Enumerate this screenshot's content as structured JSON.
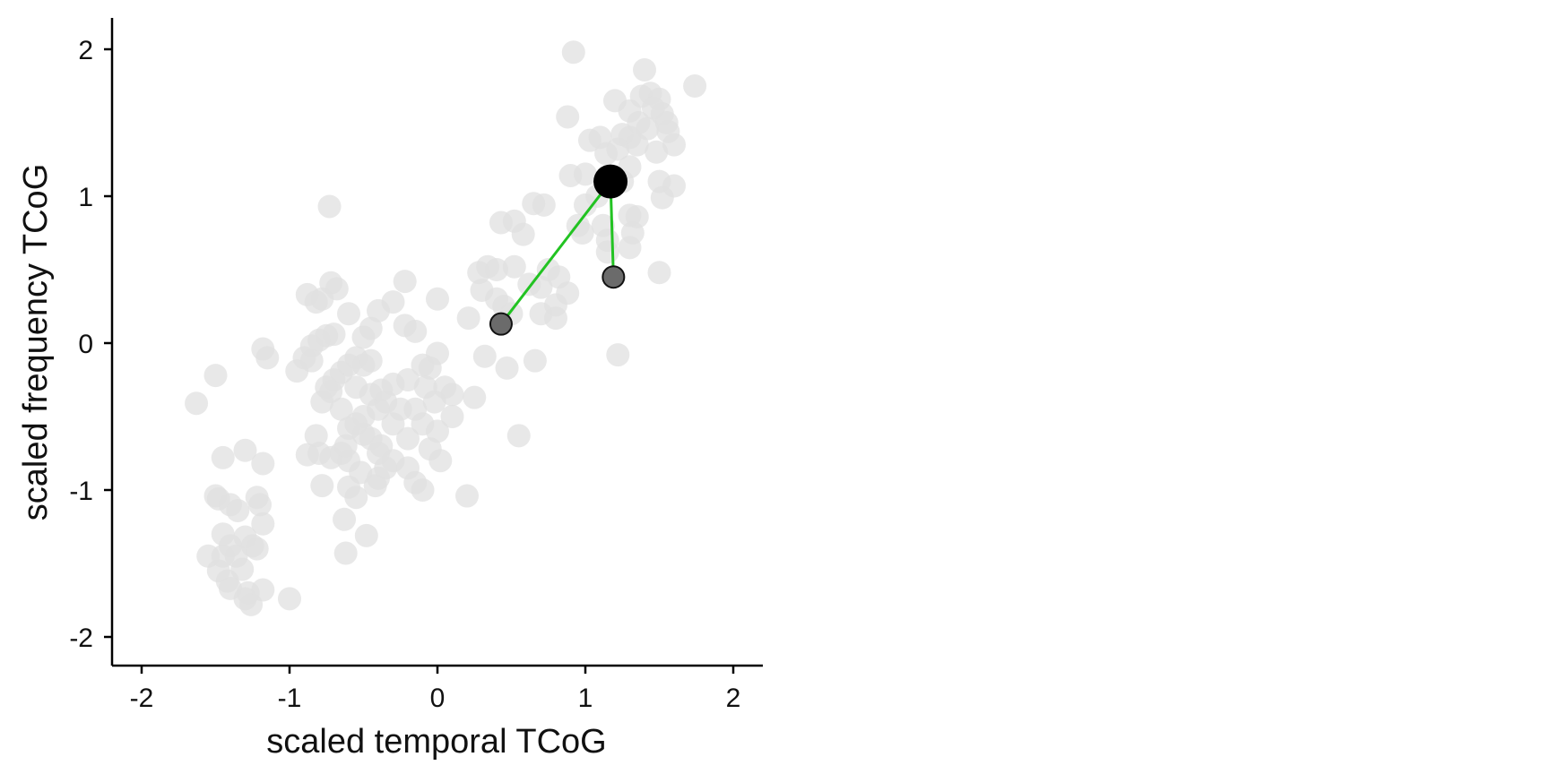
{
  "chart_data": {
    "type": "scatter",
    "title": "",
    "xlabel": "scaled temporal TCoG",
    "ylabel": "scaled frequency TCoG",
    "xlim": [
      -2.2,
      2.2
    ],
    "ylim": [
      -2.2,
      2.2
    ],
    "xticks": [
      -2,
      -1,
      0,
      1,
      2
    ],
    "yticks": [
      -2,
      -1,
      0,
      1,
      2
    ],
    "xtick_labels": [
      "-2",
      "-1",
      "0",
      "1",
      "2"
    ],
    "ytick_labels": [
      "-2",
      "-1",
      "0",
      "1",
      "2"
    ],
    "grid": false,
    "legend": "none",
    "colors": {
      "background_points": "#e0e0e0",
      "focus_point": "#000000",
      "neighbor_points": "#6b6b6b",
      "link_lines": "#22c322",
      "axis": "#000000"
    },
    "background_points": [
      [
        0.92,
        1.98
      ],
      [
        1.4,
        1.86
      ],
      [
        1.74,
        1.75
      ],
      [
        1.38,
        1.68
      ],
      [
        1.44,
        1.7
      ],
      [
        1.5,
        1.66
      ],
      [
        1.2,
        1.65
      ],
      [
        1.3,
        1.58
      ],
      [
        1.46,
        1.6
      ],
      [
        1.52,
        1.56
      ],
      [
        1.55,
        1.5
      ],
      [
        0.88,
        1.54
      ],
      [
        1.36,
        1.5
      ],
      [
        1.42,
        1.46
      ],
      [
        1.56,
        1.44
      ],
      [
        1.25,
        1.42
      ],
      [
        1.1,
        1.4
      ],
      [
        1.03,
        1.38
      ],
      [
        1.3,
        1.4
      ],
      [
        1.6,
        1.35
      ],
      [
        1.35,
        1.35
      ],
      [
        1.22,
        1.32
      ],
      [
        1.48,
        1.3
      ],
      [
        1.14,
        1.29
      ],
      [
        0.9,
        1.14
      ],
      [
        1.3,
        1.2
      ],
      [
        1.0,
        1.15
      ],
      [
        1.25,
        1.1
      ],
      [
        1.5,
        1.1
      ],
      [
        1.6,
        1.07
      ],
      [
        1.08,
        1.0
      ],
      [
        1.52,
        0.99
      ],
      [
        1.0,
        0.94
      ],
      [
        1.3,
        0.87
      ],
      [
        1.35,
        0.86
      ],
      [
        0.95,
        0.8
      ],
      [
        1.12,
        0.8
      ],
      [
        1.32,
        0.75
      ],
      [
        0.98,
        0.75
      ],
      [
        1.15,
        0.7
      ],
      [
        1.3,
        0.65
      ],
      [
        1.15,
        0.62
      ],
      [
        1.5,
        0.48
      ],
      [
        0.72,
        0.94
      ],
      [
        0.65,
        0.95
      ],
      [
        0.52,
        0.83
      ],
      [
        0.43,
        0.82
      ],
      [
        0.58,
        0.74
      ],
      [
        0.34,
        0.52
      ],
      [
        0.52,
        0.52
      ],
      [
        0.28,
        0.48
      ],
      [
        0.4,
        0.5
      ],
      [
        0.75,
        0.5
      ],
      [
        0.82,
        0.45
      ],
      [
        0.7,
        0.38
      ],
      [
        0.88,
        0.34
      ],
      [
        0.62,
        0.4
      ],
      [
        0.3,
        0.36
      ],
      [
        0.4,
        0.3
      ],
      [
        0.8,
        0.26
      ],
      [
        0.45,
        0.25
      ],
      [
        0.7,
        0.2
      ],
      [
        0.8,
        0.17
      ],
      [
        0.5,
        0.2
      ],
      [
        0.21,
        0.17
      ],
      [
        0.32,
        -0.09
      ],
      [
        0.47,
        -0.17
      ],
      [
        0.66,
        -0.12
      ],
      [
        1.22,
        -0.08
      ],
      [
        0.55,
        -0.63
      ],
      [
        0.25,
        -0.37
      ],
      [
        0.2,
        -1.04
      ],
      [
        0.05,
        -0.3
      ],
      [
        0.1,
        -0.35
      ],
      [
        -0.02,
        -0.4
      ],
      [
        0.1,
        -0.5
      ],
      [
        0.0,
        -0.6
      ],
      [
        -0.05,
        -0.72
      ],
      [
        0.02,
        -0.8
      ],
      [
        -0.1,
        -0.55
      ],
      [
        -0.15,
        -0.45
      ],
      [
        -0.2,
        -0.65
      ],
      [
        -0.15,
        -0.95
      ],
      [
        -0.1,
        -1.0
      ],
      [
        0.0,
        0.3
      ],
      [
        -0.15,
        0.08
      ],
      [
        -0.22,
        0.12
      ],
      [
        -0.22,
        0.42
      ],
      [
        -0.3,
        0.28
      ],
      [
        -0.4,
        0.22
      ],
      [
        -0.45,
        0.1
      ],
      [
        -0.5,
        0.04
      ],
      [
        -0.6,
        0.2
      ],
      [
        -0.68,
        0.37
      ],
      [
        -0.72,
        0.41
      ],
      [
        -0.78,
        0.3
      ],
      [
        -0.88,
        0.33
      ],
      [
        -0.75,
        0.05
      ],
      [
        -0.8,
        0.02
      ],
      [
        -0.85,
        -0.02
      ],
      [
        -0.9,
        -0.1
      ],
      [
        -0.95,
        -0.19
      ],
      [
        -1.18,
        -0.04
      ],
      [
        -1.15,
        -0.1
      ],
      [
        -0.55,
        -0.1
      ],
      [
        -0.5,
        -0.15
      ],
      [
        -0.45,
        -0.12
      ],
      [
        -0.6,
        -0.15
      ],
      [
        -0.65,
        -0.2
      ],
      [
        -0.7,
        -0.25
      ],
      [
        -0.75,
        -0.3
      ],
      [
        -0.78,
        -0.4
      ],
      [
        -0.72,
        -0.33
      ],
      [
        -0.65,
        -0.45
      ],
      [
        -0.55,
        -0.3
      ],
      [
        -0.45,
        -0.35
      ],
      [
        -0.4,
        -0.45
      ],
      [
        -0.35,
        -0.4
      ],
      [
        -0.3,
        -0.55
      ],
      [
        -0.25,
        -0.45
      ],
      [
        -0.2,
        -0.25
      ],
      [
        -0.3,
        -0.28
      ],
      [
        -0.38,
        -0.32
      ],
      [
        -0.5,
        -0.5
      ],
      [
        -0.55,
        -0.55
      ],
      [
        -0.6,
        -0.58
      ],
      [
        -0.5,
        -0.62
      ],
      [
        -0.45,
        -0.65
      ],
      [
        -0.38,
        -0.7
      ],
      [
        -0.4,
        -0.75
      ],
      [
        -0.3,
        -0.8
      ],
      [
        -0.35,
        -0.85
      ],
      [
        -0.2,
        -0.85
      ],
      [
        -0.4,
        -0.92
      ],
      [
        -0.42,
        -0.97
      ],
      [
        -0.52,
        -0.88
      ],
      [
        -0.6,
        -0.8
      ],
      [
        -0.65,
        -0.75
      ],
      [
        -0.72,
        -0.78
      ],
      [
        -0.8,
        -0.75
      ],
      [
        -0.88,
        -0.76
      ],
      [
        -0.82,
        -0.63
      ],
      [
        -0.62,
        -0.7
      ],
      [
        -0.6,
        -0.98
      ],
      [
        -0.55,
        -1.05
      ],
      [
        -0.63,
        -1.2
      ],
      [
        -0.48,
        -1.31
      ],
      [
        -0.78,
        -0.97
      ],
      [
        -0.62,
        -1.43
      ],
      [
        -0.05,
        -0.17
      ],
      [
        0.0,
        -0.07
      ],
      [
        -0.1,
        -0.15
      ],
      [
        -0.08,
        -0.3
      ],
      [
        -0.73,
        0.93
      ],
      [
        -0.82,
        0.28
      ],
      [
        -0.7,
        0.06
      ],
      [
        -0.85,
        -0.12
      ],
      [
        -1.5,
        -0.22
      ],
      [
        -1.63,
        -0.41
      ],
      [
        -1.45,
        -0.78
      ],
      [
        -1.3,
        -0.73
      ],
      [
        -1.18,
        -0.82
      ],
      [
        -1.5,
        -1.04
      ],
      [
        -1.48,
        -1.06
      ],
      [
        -1.4,
        -1.1
      ],
      [
        -1.35,
        -1.14
      ],
      [
        -1.22,
        -1.05
      ],
      [
        -1.18,
        -1.23
      ],
      [
        -1.45,
        -1.3
      ],
      [
        -1.4,
        -1.38
      ],
      [
        -1.3,
        -1.32
      ],
      [
        -1.25,
        -1.38
      ],
      [
        -1.22,
        -1.4
      ],
      [
        -1.32,
        -1.54
      ],
      [
        -1.55,
        -1.45
      ],
      [
        -1.48,
        -1.55
      ],
      [
        -1.42,
        -1.62
      ],
      [
        -1.4,
        -1.67
      ],
      [
        -1.3,
        -1.74
      ],
      [
        -1.26,
        -1.78
      ],
      [
        -1.28,
        -1.7
      ],
      [
        -1.18,
        -1.68
      ],
      [
        -1.0,
        -1.74
      ],
      [
        -1.36,
        -1.45
      ],
      [
        -1.2,
        -1.1
      ],
      [
        -1.45,
        -1.45
      ]
    ],
    "focus_point": [
      1.17,
      1.1
    ],
    "neighbor_points": [
      [
        0.43,
        0.13
      ],
      [
        1.19,
        0.45
      ]
    ],
    "links": [
      [
        [
          1.17,
          1.1
        ],
        [
          0.43,
          0.13
        ]
      ],
      [
        [
          1.17,
          1.1
        ],
        [
          1.19,
          0.45
        ]
      ]
    ]
  }
}
